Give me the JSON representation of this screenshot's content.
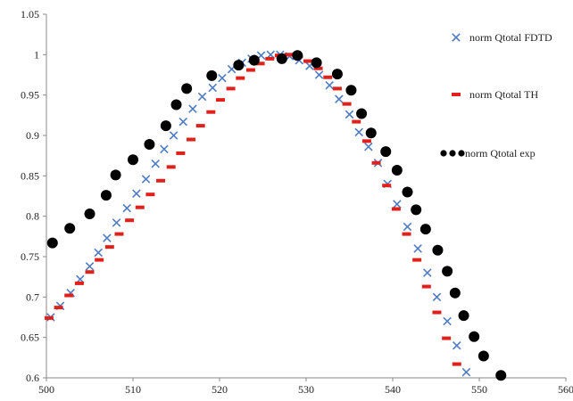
{
  "chart_data": {
    "type": "scatter",
    "title": "",
    "xlabel": "",
    "ylabel": "",
    "xlim": [
      500,
      560
    ],
    "ylim": [
      0.6,
      1.05
    ],
    "x_ticks": [
      "500",
      "510",
      "520",
      "530",
      "540",
      "550",
      "560"
    ],
    "y_ticks": [
      "0.6",
      "0.65",
      "0.7",
      "0.75",
      "0.8",
      "0.85",
      "0.9",
      "0.95",
      "1",
      "1.05"
    ],
    "grid": false,
    "legend_placement": "right",
    "series": [
      {
        "name": "norm Qtotal FDTD",
        "marker": "x",
        "color": "#4f7cc4",
        "points": [
          [
            500.5,
            0.675
          ],
          [
            501.6,
            0.689
          ],
          [
            502.8,
            0.705
          ],
          [
            503.9,
            0.722
          ],
          [
            505.0,
            0.738
          ],
          [
            506.0,
            0.755
          ],
          [
            507.0,
            0.773
          ],
          [
            508.1,
            0.792
          ],
          [
            509.3,
            0.81
          ],
          [
            510.4,
            0.828
          ],
          [
            511.5,
            0.846
          ],
          [
            512.6,
            0.865
          ],
          [
            513.6,
            0.883
          ],
          [
            514.7,
            0.9
          ],
          [
            515.8,
            0.917
          ],
          [
            516.9,
            0.933
          ],
          [
            518.0,
            0.948
          ],
          [
            519.2,
            0.959
          ],
          [
            520.3,
            0.971
          ],
          [
            521.4,
            0.982
          ],
          [
            522.6,
            0.99
          ],
          [
            523.7,
            0.995
          ],
          [
            524.8,
            0.999
          ],
          [
            525.9,
            1.0
          ],
          [
            527.0,
            1.0
          ],
          [
            528.1,
            0.998
          ],
          [
            529.2,
            0.993
          ],
          [
            530.4,
            0.986
          ],
          [
            531.5,
            0.975
          ],
          [
            532.7,
            0.962
          ],
          [
            533.8,
            0.945
          ],
          [
            535.0,
            0.926
          ],
          [
            536.1,
            0.904
          ],
          [
            537.2,
            0.886
          ],
          [
            538.3,
            0.866
          ],
          [
            539.4,
            0.84
          ],
          [
            540.5,
            0.815
          ],
          [
            541.7,
            0.787
          ],
          [
            542.9,
            0.76
          ],
          [
            544.0,
            0.73
          ],
          [
            545.1,
            0.7
          ],
          [
            546.3,
            0.67
          ],
          [
            547.4,
            0.64
          ],
          [
            548.5,
            0.607
          ]
        ]
      },
      {
        "name": "norm Qtotal TH",
        "marker": "dash",
        "color": "#e0201a",
        "points": [
          [
            500.3,
            0.674
          ],
          [
            501.4,
            0.687
          ],
          [
            502.6,
            0.702
          ],
          [
            503.8,
            0.717
          ],
          [
            505.0,
            0.731
          ],
          [
            506.1,
            0.746
          ],
          [
            507.3,
            0.762
          ],
          [
            508.4,
            0.778
          ],
          [
            509.6,
            0.795
          ],
          [
            510.8,
            0.811
          ],
          [
            512.0,
            0.827
          ],
          [
            513.2,
            0.844
          ],
          [
            514.4,
            0.861
          ],
          [
            515.5,
            0.878
          ],
          [
            516.7,
            0.895
          ],
          [
            517.8,
            0.912
          ],
          [
            519.0,
            0.929
          ],
          [
            520.1,
            0.944
          ],
          [
            521.3,
            0.958
          ],
          [
            522.4,
            0.971
          ],
          [
            523.6,
            0.981
          ],
          [
            524.7,
            0.989
          ],
          [
            525.8,
            0.995
          ],
          [
            526.9,
            0.999
          ],
          [
            528.0,
            1.0
          ],
          [
            529.1,
            0.998
          ],
          [
            530.2,
            0.992
          ],
          [
            531.4,
            0.983
          ],
          [
            532.5,
            0.972
          ],
          [
            533.6,
            0.958
          ],
          [
            534.7,
            0.939
          ],
          [
            535.8,
            0.917
          ],
          [
            537.0,
            0.893
          ],
          [
            538.1,
            0.866
          ],
          [
            539.3,
            0.838
          ],
          [
            540.4,
            0.809
          ],
          [
            541.6,
            0.778
          ],
          [
            542.8,
            0.746
          ],
          [
            543.9,
            0.713
          ],
          [
            545.1,
            0.681
          ],
          [
            546.2,
            0.649
          ],
          [
            547.4,
            0.617
          ]
        ]
      },
      {
        "name": "norm Qtotal exp",
        "marker": "circle",
        "color": "#000000",
        "points": [
          [
            500.7,
            0.767
          ],
          [
            502.7,
            0.785
          ],
          [
            505.0,
            0.803
          ],
          [
            506.9,
            0.826
          ],
          [
            508.0,
            0.851
          ],
          [
            510.0,
            0.87
          ],
          [
            511.9,
            0.889
          ],
          [
            513.8,
            0.912
          ],
          [
            515.0,
            0.938
          ],
          [
            516.2,
            0.958
          ],
          [
            519.1,
            0.974
          ],
          [
            522.2,
            0.987
          ],
          [
            524.0,
            0.993
          ],
          [
            527.2,
            0.995
          ],
          [
            529.0,
            0.999
          ],
          [
            531.2,
            0.99
          ],
          [
            533.6,
            0.976
          ],
          [
            535.2,
            0.956
          ],
          [
            536.4,
            0.927
          ],
          [
            537.5,
            0.903
          ],
          [
            539.2,
            0.88
          ],
          [
            540.5,
            0.857
          ],
          [
            541.7,
            0.83
          ],
          [
            542.7,
            0.808
          ],
          [
            543.8,
            0.784
          ],
          [
            545.2,
            0.758
          ],
          [
            546.3,
            0.732
          ],
          [
            547.2,
            0.705
          ],
          [
            548.2,
            0.677
          ],
          [
            549.4,
            0.651
          ],
          [
            550.5,
            0.627
          ],
          [
            552.5,
            0.603
          ]
        ]
      }
    ]
  }
}
